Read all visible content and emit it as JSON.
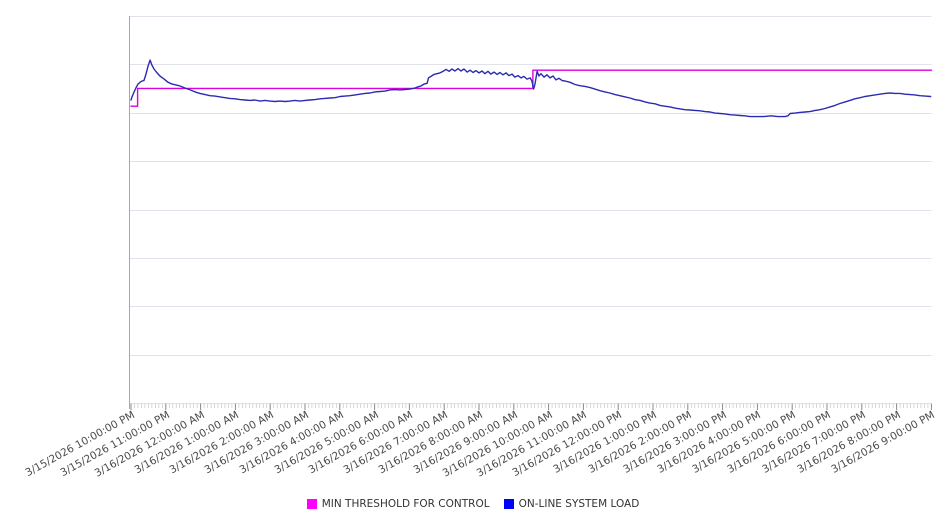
{
  "window": {
    "background": "#ffffff"
  },
  "chart": {
    "title": "",
    "legend": [
      {
        "label": "MIN THRESHOLD FOR CONTROL",
        "color": "#ff00ff"
      },
      {
        "label": "ON-LINE SYSTEM LOAD",
        "color": "#0000ff"
      }
    ],
    "colors": {
      "gridline": "#e2e2ea",
      "axis_line": "#a8a8a8",
      "tick_minor": "#c6c6c6",
      "tick_hour": "#8a8a8a",
      "x_label_text": "#4a4a4a",
      "legend_text": "#333333"
    }
  },
  "chart_data": {
    "type": "line",
    "title": "",
    "xlabel": "",
    "ylabel": "",
    "legend_position": "bottom",
    "grid": "horizontal-only",
    "y_axis": {
      "tick_labels_visible": false,
      "range": [
        0,
        100
      ],
      "unit": "relative load (no axis labels shown in chart)",
      "gridline_intervals": 8
    },
    "x_axis": {
      "range_hours": [
        0,
        23
      ],
      "minor_ticks_per_hour": 10,
      "labels": [
        "3/15/2026 10:00:00 PM",
        "3/15/2026 11:00:00 PM",
        "3/16/2026 12:00:00 AM",
        "3/16/2026 1:00:00 AM",
        "3/16/2026 2:00:00 AM",
        "3/16/2026 3:00:00 AM",
        "3/16/2026 4:00:00 AM",
        "3/16/2026 5:00:00 AM",
        "3/16/2026 6:00:00 AM",
        "3/16/2026 7:00:00 AM",
        "3/16/2026 8:00:00 AM",
        "3/16/2026 9:00:00 AM",
        "3/16/2026 10:00:00 AM",
        "3/16/2026 11:00:00 AM",
        "3/16/2026 12:00:00 PM",
        "3/16/2026 1:00:00 PM",
        "3/16/2026 2:00:00 PM",
        "3/16/2026 3:00:00 PM",
        "3/16/2026 4:00:00 PM",
        "3/16/2026 5:00:00 PM",
        "3/16/2026 6:00:00 PM",
        "3/16/2026 7:00:00 PM",
        "3/16/2026 8:00:00 PM",
        "3/16/2026 9:00:00 PM"
      ]
    },
    "series": [
      {
        "name": "MIN THRESHOLD FOR CONTROL",
        "color": "#dd00dd",
        "points": [
          [
            0,
            76.7
          ],
          [
            0.19,
            76.7
          ],
          [
            0.19,
            81.3
          ],
          [
            11.55,
            81.3
          ],
          [
            11.55,
            86.0
          ],
          [
            23,
            86.0
          ]
        ]
      },
      {
        "name": "ON-LINE SYSTEM LOAD",
        "color": "#2b2bb2",
        "points": [
          [
            0,
            78.3
          ],
          [
            0.03,
            79.1
          ],
          [
            0.09,
            80.4
          ],
          [
            0.14,
            81.4
          ],
          [
            0.2,
            82.4
          ],
          [
            0.26,
            82.9
          ],
          [
            0.32,
            83.2
          ],
          [
            0.37,
            83.3
          ],
          [
            0.43,
            85.0
          ],
          [
            0.49,
            87.1
          ],
          [
            0.55,
            88.6
          ],
          [
            0.6,
            87.3
          ],
          [
            0.66,
            86.3
          ],
          [
            0.75,
            85.3
          ],
          [
            0.83,
            84.5
          ],
          [
            0.95,
            83.7
          ],
          [
            1.06,
            82.9
          ],
          [
            1.18,
            82.4
          ],
          [
            1.29,
            82.2
          ],
          [
            1.41,
            81.9
          ],
          [
            1.55,
            81.4
          ],
          [
            1.7,
            80.9
          ],
          [
            1.84,
            80.4
          ],
          [
            1.98,
            80.0
          ],
          [
            2.13,
            79.7
          ],
          [
            2.27,
            79.4
          ],
          [
            2.41,
            79.3
          ],
          [
            2.56,
            79.1
          ],
          [
            2.7,
            78.9
          ],
          [
            2.84,
            78.7
          ],
          [
            2.99,
            78.6
          ],
          [
            3.13,
            78.4
          ],
          [
            3.28,
            78.3
          ],
          [
            3.42,
            78.2
          ],
          [
            3.56,
            78.3
          ],
          [
            3.71,
            78.0
          ],
          [
            3.85,
            78.2
          ],
          [
            3.99,
            78.0
          ],
          [
            4.14,
            77.9
          ],
          [
            4.28,
            78.0
          ],
          [
            4.43,
            77.9
          ],
          [
            4.57,
            78.0
          ],
          [
            4.71,
            78.2
          ],
          [
            4.86,
            78.0
          ],
          [
            5.0,
            78.2
          ],
          [
            5.14,
            78.3
          ],
          [
            5.29,
            78.4
          ],
          [
            5.43,
            78.6
          ],
          [
            5.57,
            78.7
          ],
          [
            5.72,
            78.8
          ],
          [
            5.86,
            78.9
          ],
          [
            6.01,
            79.2
          ],
          [
            6.15,
            79.3
          ],
          [
            6.29,
            79.4
          ],
          [
            6.44,
            79.6
          ],
          [
            6.58,
            79.8
          ],
          [
            6.72,
            80.0
          ],
          [
            6.87,
            80.1
          ],
          [
            7.01,
            80.4
          ],
          [
            7.16,
            80.5
          ],
          [
            7.3,
            80.6
          ],
          [
            7.44,
            80.9
          ],
          [
            7.59,
            81.0
          ],
          [
            7.73,
            80.9
          ],
          [
            7.87,
            81.0
          ],
          [
            8.02,
            81.1
          ],
          [
            8.16,
            81.4
          ],
          [
            8.25,
            81.7
          ],
          [
            8.33,
            81.9
          ],
          [
            8.42,
            82.4
          ],
          [
            8.51,
            82.6
          ],
          [
            8.55,
            84.0
          ],
          [
            8.62,
            84.4
          ],
          [
            8.71,
            84.9
          ],
          [
            8.79,
            85.1
          ],
          [
            8.88,
            85.3
          ],
          [
            8.97,
            85.7
          ],
          [
            9.05,
            86.2
          ],
          [
            9.14,
            85.7
          ],
          [
            9.22,
            86.3
          ],
          [
            9.31,
            85.8
          ],
          [
            9.4,
            86.4
          ],
          [
            9.48,
            85.8
          ],
          [
            9.57,
            86.3
          ],
          [
            9.66,
            85.5
          ],
          [
            9.74,
            86.0
          ],
          [
            9.83,
            85.4
          ],
          [
            9.91,
            85.9
          ],
          [
            10.0,
            85.3
          ],
          [
            10.09,
            85.8
          ],
          [
            10.17,
            85.1
          ],
          [
            10.26,
            85.7
          ],
          [
            10.34,
            85.0
          ],
          [
            10.43,
            85.5
          ],
          [
            10.52,
            84.9
          ],
          [
            10.6,
            85.4
          ],
          [
            10.69,
            84.8
          ],
          [
            10.78,
            85.3
          ],
          [
            10.86,
            84.6
          ],
          [
            10.95,
            85.0
          ],
          [
            11.03,
            84.2
          ],
          [
            11.12,
            84.6
          ],
          [
            11.21,
            84.0
          ],
          [
            11.29,
            84.4
          ],
          [
            11.38,
            83.7
          ],
          [
            11.47,
            84.0
          ],
          [
            11.52,
            83.2
          ],
          [
            11.57,
            81.1
          ],
          [
            11.61,
            82.4
          ],
          [
            11.67,
            85.7
          ],
          [
            11.72,
            84.5
          ],
          [
            11.78,
            85.1
          ],
          [
            11.87,
            84.2
          ],
          [
            11.95,
            84.8
          ],
          [
            12.04,
            84.0
          ],
          [
            12.13,
            84.5
          ],
          [
            12.21,
            83.5
          ],
          [
            12.3,
            83.9
          ],
          [
            12.39,
            83.3
          ],
          [
            12.47,
            83.2
          ],
          [
            12.61,
            82.9
          ],
          [
            12.76,
            82.3
          ],
          [
            12.9,
            82.0
          ],
          [
            13.05,
            81.8
          ],
          [
            13.19,
            81.5
          ],
          [
            13.33,
            81.1
          ],
          [
            13.48,
            80.7
          ],
          [
            13.62,
            80.4
          ],
          [
            13.76,
            80.1
          ],
          [
            13.91,
            79.7
          ],
          [
            14.05,
            79.4
          ],
          [
            14.2,
            79.1
          ],
          [
            14.34,
            78.8
          ],
          [
            14.48,
            78.4
          ],
          [
            14.63,
            78.2
          ],
          [
            14.77,
            77.8
          ],
          [
            14.91,
            77.5
          ],
          [
            15.06,
            77.3
          ],
          [
            15.2,
            76.9
          ],
          [
            15.34,
            76.7
          ],
          [
            15.49,
            76.5
          ],
          [
            15.63,
            76.2
          ],
          [
            15.78,
            76.0
          ],
          [
            15.92,
            75.8
          ],
          [
            16.06,
            75.7
          ],
          [
            16.21,
            75.6
          ],
          [
            16.35,
            75.5
          ],
          [
            16.49,
            75.3
          ],
          [
            16.64,
            75.2
          ],
          [
            16.78,
            74.9
          ],
          [
            16.93,
            74.8
          ],
          [
            17.07,
            74.7
          ],
          [
            17.21,
            74.5
          ],
          [
            17.36,
            74.4
          ],
          [
            17.5,
            74.3
          ],
          [
            17.64,
            74.2
          ],
          [
            17.79,
            74.0
          ],
          [
            17.99,
            74.0
          ],
          [
            18.19,
            74.0
          ],
          [
            18.39,
            74.2
          ],
          [
            18.59,
            74.0
          ],
          [
            18.79,
            74.0
          ],
          [
            18.88,
            74.2
          ],
          [
            18.94,
            74.8
          ],
          [
            19.08,
            74.9
          ],
          [
            19.22,
            75.1
          ],
          [
            19.37,
            75.2
          ],
          [
            19.51,
            75.3
          ],
          [
            19.66,
            75.6
          ],
          [
            19.8,
            75.8
          ],
          [
            19.94,
            76.1
          ],
          [
            20.09,
            76.5
          ],
          [
            20.23,
            76.9
          ],
          [
            20.37,
            77.4
          ],
          [
            20.52,
            77.8
          ],
          [
            20.66,
            78.2
          ],
          [
            20.8,
            78.6
          ],
          [
            20.95,
            78.9
          ],
          [
            21.09,
            79.2
          ],
          [
            21.24,
            79.4
          ],
          [
            21.38,
            79.6
          ],
          [
            21.52,
            79.8
          ],
          [
            21.67,
            80.0
          ],
          [
            21.81,
            80.1
          ],
          [
            21.95,
            80.0
          ],
          [
            22.1,
            80.0
          ],
          [
            22.24,
            79.8
          ],
          [
            22.39,
            79.7
          ],
          [
            22.53,
            79.6
          ],
          [
            22.67,
            79.4
          ],
          [
            22.82,
            79.3
          ],
          [
            22.98,
            79.2
          ]
        ]
      }
    ]
  }
}
